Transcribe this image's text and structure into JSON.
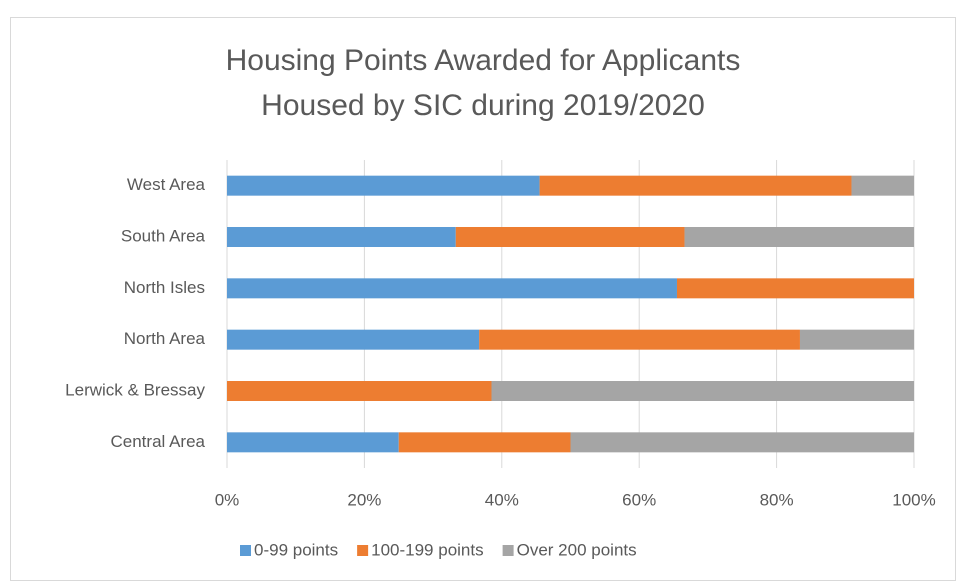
{
  "chart_data": {
    "type": "stacked-bar-horizontal",
    "title": [
      "Housing Points Awarded for Applicants",
      "Housed by SIC during 2019/2020"
    ],
    "categories": [
      "West Area",
      "South Area",
      "North Isles",
      "North Area",
      "Lerwick & Bressay",
      "Central Area"
    ],
    "series": [
      {
        "name": "0-99 points",
        "color": "#5b9bd5",
        "values": [
          45.5,
          33.3,
          65.5,
          36.7,
          0,
          25
        ]
      },
      {
        "name": "100-199 points",
        "color": "#ed7d31",
        "values": [
          45.4,
          33.3,
          34.5,
          46.7,
          38.5,
          25
        ]
      },
      {
        "name": "Over 200 points",
        "color": "#a5a5a5",
        "values": [
          9.1,
          33.4,
          0,
          16.6,
          61.5,
          50
        ]
      }
    ],
    "xlim": [
      0,
      100
    ],
    "xticks": [
      {
        "value": 0,
        "label": "0%"
      },
      {
        "value": 20,
        "label": "20%"
      },
      {
        "value": 40,
        "label": "40%"
      },
      {
        "value": 60,
        "label": "60%"
      },
      {
        "value": 80,
        "label": "80%"
      },
      {
        "value": 100,
        "label": "100%"
      }
    ],
    "grid": true,
    "legend": "bottom"
  }
}
